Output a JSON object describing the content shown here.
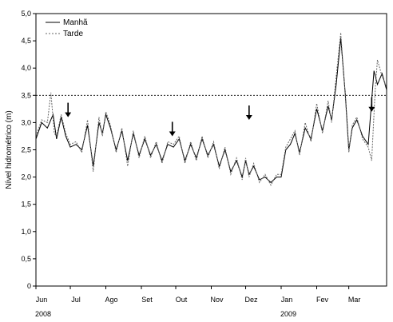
{
  "chart_data": {
    "type": "line",
    "title": "",
    "xlabel": "",
    "ylabel": "Nível hidrométrico (m)",
    "ylim": [
      0,
      5.0
    ],
    "yticks": [
      "0",
      "0,5",
      "1,0",
      "1,5",
      "2,0",
      "2,5",
      "3,0",
      "3,5",
      "4,0",
      "4,5",
      "5,0"
    ],
    "x_range_days": [
      0,
      306
    ],
    "x_ticks": [
      {
        "label": "Jun",
        "day": 0
      },
      {
        "label": "Jul",
        "day": 30
      },
      {
        "label": "Ago",
        "day": 61
      },
      {
        "label": "Set",
        "day": 92
      },
      {
        "label": "Out",
        "day": 122
      },
      {
        "label": "Nov",
        "day": 153
      },
      {
        "label": "Dez",
        "day": 183
      },
      {
        "label": "Jan",
        "day": 214
      },
      {
        "label": "Fev",
        "day": 245
      },
      {
        "label": "Mar",
        "day": 273
      }
    ],
    "year_labels": [
      {
        "label": "2008",
        "day": 0
      },
      {
        "label": "2009",
        "day": 214
      }
    ],
    "reference_line": 3.5,
    "legend": {
      "position": "top-left",
      "entries": [
        "Manhã",
        "Tarde"
      ]
    },
    "arrows": [
      {
        "day": 28,
        "y": 3.1
      },
      {
        "day": 119,
        "y": 2.75
      },
      {
        "day": 186,
        "y": 3.05
      },
      {
        "day": 293,
        "y": 3.2
      }
    ],
    "series": [
      {
        "name": "Manhã",
        "style": "solid",
        "color": "#000000",
        "x": [
          0,
          5,
          10,
          15,
          18,
          22,
          26,
          30,
          35,
          40,
          45,
          50,
          55,
          58,
          61,
          65,
          70,
          75,
          80,
          85,
          90,
          95,
          100,
          105,
          110,
          115,
          120,
          125,
          130,
          135,
          140,
          145,
          150,
          155,
          160,
          165,
          170,
          175,
          180,
          183,
          186,
          190,
          195,
          200,
          205,
          210,
          214,
          218,
          222,
          226,
          230,
          235,
          240,
          245,
          250,
          255,
          258,
          262,
          266,
          270,
          273,
          276,
          280,
          285,
          290,
          295,
          298,
          302,
          306
        ],
        "y": [
          2.7,
          3.0,
          2.9,
          3.15,
          2.7,
          3.1,
          2.75,
          2.55,
          2.6,
          2.5,
          2.95,
          2.2,
          3.0,
          2.8,
          3.15,
          2.9,
          2.5,
          2.85,
          2.3,
          2.8,
          2.4,
          2.7,
          2.4,
          2.6,
          2.3,
          2.6,
          2.55,
          2.7,
          2.3,
          2.6,
          2.35,
          2.7,
          2.4,
          2.6,
          2.2,
          2.5,
          2.1,
          2.3,
          2.0,
          2.3,
          2.05,
          2.2,
          1.95,
          2.0,
          1.9,
          2.0,
          2.0,
          2.5,
          2.6,
          2.8,
          2.45,
          2.9,
          2.7,
          3.25,
          2.85,
          3.3,
          3.05,
          3.7,
          4.55,
          3.5,
          2.5,
          2.9,
          3.05,
          2.75,
          2.6,
          3.95,
          3.7,
          3.9,
          3.6
        ]
      },
      {
        "name": "Tarde",
        "style": "dashed",
        "color": "#666666",
        "x": [
          0,
          5,
          10,
          13,
          16,
          18,
          22,
          26,
          30,
          35,
          40,
          45,
          50,
          55,
          58,
          61,
          65,
          70,
          75,
          80,
          85,
          90,
          95,
          100,
          105,
          110,
          115,
          120,
          125,
          130,
          135,
          140,
          145,
          150,
          155,
          160,
          165,
          170,
          175,
          180,
          183,
          186,
          190,
          195,
          200,
          205,
          210,
          214,
          218,
          222,
          226,
          230,
          235,
          240,
          245,
          250,
          255,
          258,
          262,
          266,
          270,
          273,
          276,
          280,
          285,
          290,
          293,
          296,
          298,
          302,
          306
        ],
        "y": [
          2.75,
          3.05,
          3.0,
          3.55,
          2.8,
          2.75,
          3.15,
          2.8,
          2.6,
          2.65,
          2.45,
          3.05,
          2.1,
          3.1,
          2.75,
          3.2,
          2.95,
          2.45,
          2.9,
          2.2,
          2.85,
          2.35,
          2.75,
          2.35,
          2.65,
          2.25,
          2.65,
          2.6,
          2.75,
          2.25,
          2.65,
          2.3,
          2.75,
          2.35,
          2.65,
          2.15,
          2.55,
          2.05,
          2.35,
          1.95,
          2.35,
          2.0,
          2.25,
          1.9,
          2.05,
          1.85,
          2.05,
          2.05,
          2.55,
          2.7,
          2.85,
          2.4,
          3.0,
          2.65,
          3.35,
          2.8,
          3.4,
          3.0,
          3.85,
          4.65,
          3.45,
          2.45,
          2.95,
          3.1,
          2.7,
          2.55,
          2.3,
          3.6,
          4.15,
          3.85,
          3.65
        ]
      }
    ]
  }
}
